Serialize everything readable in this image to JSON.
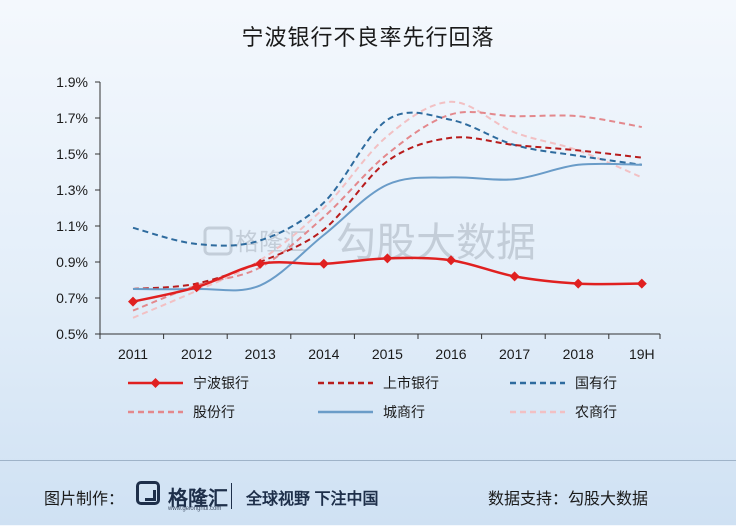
{
  "chart_data": {
    "type": "line",
    "title": "宁波银行不良率先行回落",
    "categories": [
      "2011",
      "2012",
      "2013",
      "2014",
      "2015",
      "2016",
      "2017",
      "2018",
      "19H"
    ],
    "y_ticks": [
      "0.5%",
      "0.7%",
      "0.9%",
      "1.1%",
      "1.3%",
      "1.5%",
      "1.7%",
      "1.9%"
    ],
    "ylim": [
      0.5,
      1.9
    ],
    "grid": false,
    "legend_position": "bottom",
    "series": [
      {
        "name": "宁波银行",
        "values": [
          0.68,
          0.76,
          0.89,
          0.89,
          0.92,
          0.91,
          0.82,
          0.78,
          0.78
        ],
        "color": "#e02020",
        "style": "solid-marker"
      },
      {
        "name": "上市银行",
        "values": [
          0.75,
          0.78,
          0.9,
          1.08,
          1.46,
          1.59,
          1.55,
          1.52,
          1.48
        ],
        "color": "#b81c1c",
        "style": "dashed"
      },
      {
        "name": "国有行",
        "values": [
          1.09,
          1.0,
          1.02,
          1.23,
          1.69,
          1.69,
          1.55,
          1.49,
          1.44
        ],
        "color": "#2e6b9e",
        "style": "dashed"
      },
      {
        "name": "股份行",
        "values": [
          0.63,
          0.77,
          0.87,
          1.15,
          1.5,
          1.72,
          1.71,
          1.71,
          1.65
        ],
        "color": "#e3888c",
        "style": "dashed"
      },
      {
        "name": "城商行",
        "values": [
          0.75,
          0.75,
          0.77,
          1.05,
          1.33,
          1.37,
          1.36,
          1.44,
          1.44
        ],
        "color": "#6a9cc8",
        "style": "solid"
      },
      {
        "name": "农商行",
        "values": [
          0.59,
          0.74,
          0.91,
          1.2,
          1.6,
          1.79,
          1.62,
          1.52,
          1.37
        ],
        "color": "#f2c0c3",
        "style": "dashed"
      }
    ]
  },
  "watermark": {
    "logo_text": "格隆汇",
    "text": "勾股大数据"
  },
  "footer": {
    "credit_label": "图片制作：",
    "brand": "格隆汇",
    "domain": "www.gelonghui.com",
    "slogan": "全球视野 下注中国",
    "source": "数据支持：勾股大数据"
  }
}
